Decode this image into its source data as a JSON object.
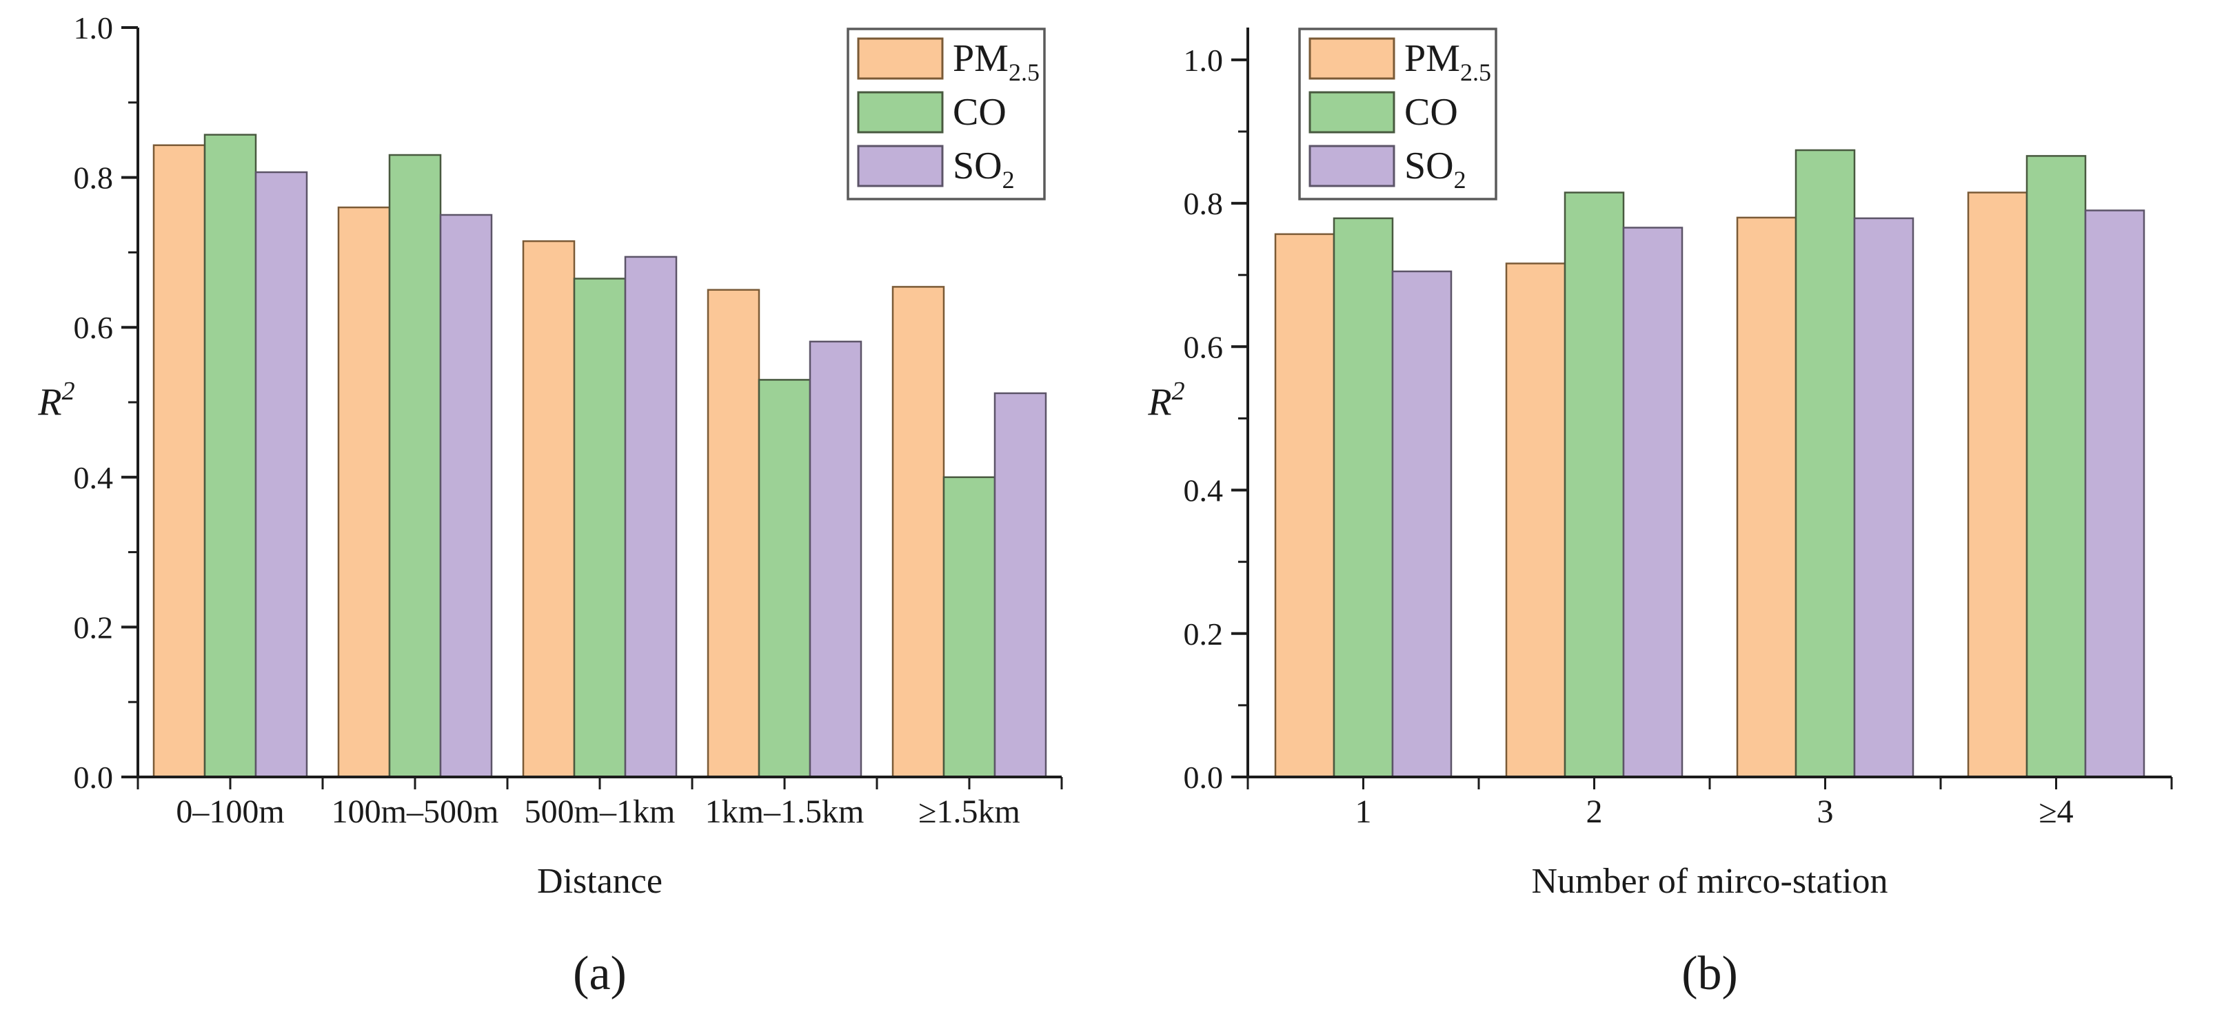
{
  "figure": {
    "background": "#ffffff",
    "text_color": "#1a1a1a",
    "axis_color": "#1c1c1c",
    "legend_border_color": "#5a5a5a",
    "legend_background": "#ffffff",
    "series_fills": [
      "#FBC797",
      "#9CD196",
      "#C1B0D8"
    ],
    "series_edges": [
      "#7a5a36",
      "#48593f",
      "#5c5468"
    ]
  },
  "chart_data": [
    {
      "type": "bar",
      "panel_caption": "(a)",
      "categories": [
        "0–100m",
        "100m–500m",
        "500m–1km",
        "1km–1.5km",
        "≥1.5km"
      ],
      "series": [
        {
          "name": "PM2.5",
          "label_main": "PM",
          "label_sub": "2.5",
          "values": [
            0.843,
            0.76,
            0.715,
            0.65,
            0.654
          ]
        },
        {
          "name": "CO",
          "label_main": "CO",
          "label_sub": "",
          "values": [
            0.857,
            0.83,
            0.665,
            0.53,
            0.4
          ]
        },
        {
          "name": "SO2",
          "label_main": "SO",
          "label_sub": "2",
          "values": [
            0.807,
            0.75,
            0.694,
            0.581,
            0.512
          ]
        }
      ],
      "xlabel": "Distance",
      "ylabel_main": "R",
      "ylabel_sup": "2",
      "ylim": [
        0.0,
        1.0
      ],
      "axis_top_value": 1.0,
      "yticks": [
        0.0,
        0.2,
        0.4,
        0.6,
        0.8,
        1.0
      ],
      "ytick_labels": [
        "0.0",
        "0.2",
        "0.4",
        "0.6",
        "0.8",
        "1.0"
      ],
      "minor_ytick_step": 0.1,
      "grid": false,
      "legend_position": "top-right"
    },
    {
      "type": "bar",
      "panel_caption": "(b)",
      "categories": [
        "1",
        "2",
        "3",
        "≥4"
      ],
      "series": [
        {
          "name": "PM2.5",
          "label_main": "PM",
          "label_sub": "2.5",
          "values": [
            0.757,
            0.716,
            0.78,
            0.815
          ]
        },
        {
          "name": "CO",
          "label_main": "CO",
          "label_sub": "",
          "values": [
            0.779,
            0.815,
            0.874,
            0.866
          ]
        },
        {
          "name": "SO2",
          "label_main": "SO",
          "label_sub": "2",
          "values": [
            0.705,
            0.766,
            0.779,
            0.79
          ]
        }
      ],
      "xlabel": "Number of mirco-station",
      "ylabel_main": "R",
      "ylabel_sup": "2",
      "ylim": [
        0.0,
        1.0
      ],
      "axis_top_value": 1.045,
      "yticks": [
        0.0,
        0.2,
        0.4,
        0.6,
        0.8,
        1.0
      ],
      "ytick_labels": [
        "0.0",
        "0.2",
        "0.4",
        "0.6",
        "0.8",
        "1.0"
      ],
      "minor_ytick_step": 0.1,
      "grid": false,
      "legend_position": "top-left"
    }
  ]
}
